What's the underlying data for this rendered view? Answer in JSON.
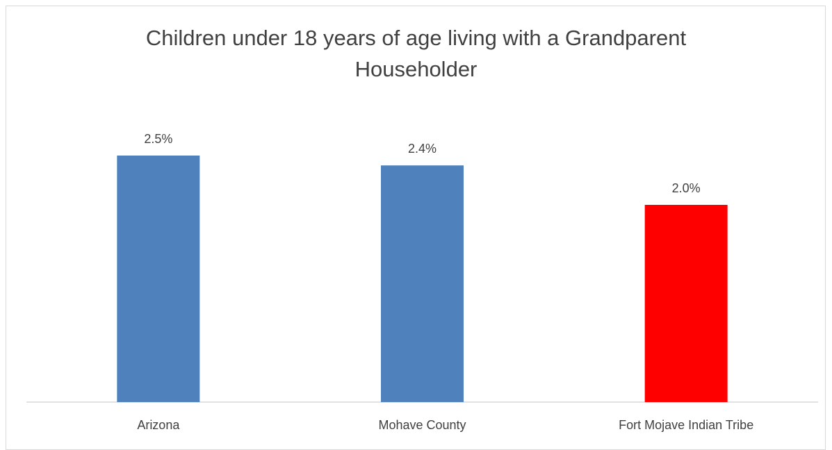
{
  "chart_data": {
    "type": "bar",
    "title_line1": "Children under 18 years of age living with a Grandparent",
    "title_line2": "Householder",
    "categories": [
      "Arizona",
      "Mohave County",
      "Fort Mojave Indian Tribe"
    ],
    "values": [
      2.5,
      2.4,
      2.0
    ],
    "data_labels": [
      "2.5%",
      "2.4%",
      "2.0%"
    ],
    "bar_colors": [
      "#4f81bd",
      "#4f81bd",
      "#ff0000"
    ],
    "ylim": [
      0,
      3.0
    ],
    "grid": false,
    "legend": "none"
  }
}
